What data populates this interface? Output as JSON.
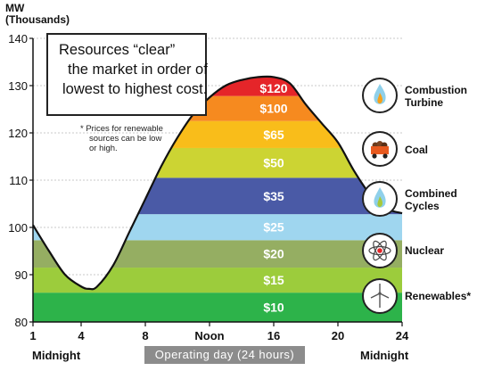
{
  "chart_data": {
    "type": "area",
    "y_unit_line1": "MW",
    "y_unit_line2": "(Thousands)",
    "ylim": [
      80,
      140
    ],
    "yticks": [
      "80",
      "90",
      "100",
      "110",
      "120",
      "130",
      "140"
    ],
    "xlim": [
      1,
      24
    ],
    "xticks": [
      {
        "x": 1,
        "label": "1"
      },
      {
        "x": 4,
        "label": "4"
      },
      {
        "x": 8,
        "label": "8"
      },
      {
        "x": 12,
        "label": "Noon"
      },
      {
        "x": 16,
        "label": "16"
      },
      {
        "x": 20,
        "label": "20"
      },
      {
        "x": 24,
        "label": "24"
      }
    ],
    "xlabel_left": "Midnight",
    "xlabel_right": "Midnight",
    "xlabel_center": "Operating day (24 hours)",
    "load_curve": [
      {
        "x": 1,
        "y": 100.5
      },
      {
        "x": 2,
        "y": 95
      },
      {
        "x": 3,
        "y": 90
      },
      {
        "x": 4,
        "y": 87.5
      },
      {
        "x": 4.5,
        "y": 87
      },
      {
        "x": 5,
        "y": 87.5
      },
      {
        "x": 6,
        "y": 92
      },
      {
        "x": 7,
        "y": 99
      },
      {
        "x": 8,
        "y": 106
      },
      {
        "x": 9,
        "y": 113
      },
      {
        "x": 10,
        "y": 119
      },
      {
        "x": 11,
        "y": 124
      },
      {
        "x": 12,
        "y": 127.5
      },
      {
        "x": 13,
        "y": 130
      },
      {
        "x": 14,
        "y": 131.2
      },
      {
        "x": 15,
        "y": 131.8
      },
      {
        "x": 16,
        "y": 131.8
      },
      {
        "x": 17,
        "y": 130.5
      },
      {
        "x": 18,
        "y": 126
      },
      {
        "x": 19,
        "y": 122
      },
      {
        "x": 20,
        "y": 118
      },
      {
        "x": 21,
        "y": 112
      },
      {
        "x": 22,
        "y": 107
      },
      {
        "x": 23,
        "y": 104
      },
      {
        "x": 24,
        "y": 103
      }
    ],
    "bands": [
      {
        "label": "$10",
        "from": 80,
        "to": 86.2,
        "color": "#2db34a"
      },
      {
        "label": "$15",
        "from": 86.2,
        "to": 91.5,
        "color": "#9ccc3c"
      },
      {
        "label": "$20",
        "from": 91.5,
        "to": 97.3,
        "color": "#95ae62"
      },
      {
        "label": "$25",
        "from": 97.3,
        "to": 102.8,
        "color": "#9fd6ef"
      },
      {
        "label": "$35",
        "from": 102.8,
        "to": 110.5,
        "color": "#4a5aa6"
      },
      {
        "label": "$50",
        "from": 110.5,
        "to": 116.8,
        "color": "#ccd433"
      },
      {
        "label": "$65",
        "from": 116.8,
        "to": 122.5,
        "color": "#f9bd1a"
      },
      {
        "label": "$100",
        "from": 122.5,
        "to": 127.8,
        "color": "#f68a1f"
      },
      {
        "label": "$120",
        "from": 127.8,
        "to": 140,
        "color": "#e52529"
      }
    ],
    "band_label_x": 16
  },
  "callout": {
    "line1": "Resources “clear”",
    "line2": "the market in order of",
    "line3": "lowest to highest cost."
  },
  "note": {
    "line1": "* Prices for renewable",
    "line2": "sources can be low",
    "line3": "or high."
  },
  "resources": [
    {
      "line1": "Combustion",
      "line2": "Turbine",
      "icon": "flame-orange-icon"
    },
    {
      "line1": "Coal",
      "line2": "",
      "icon": "coal-cart-icon"
    },
    {
      "line1": "Combined",
      "line2": "Cycles",
      "icon": "flame-green-icon"
    },
    {
      "line1": "Nuclear",
      "line2": "",
      "icon": "atom-icon"
    },
    {
      "line1": "Renewables*",
      "line2": "",
      "icon": "wind-turbine-icon"
    }
  ]
}
